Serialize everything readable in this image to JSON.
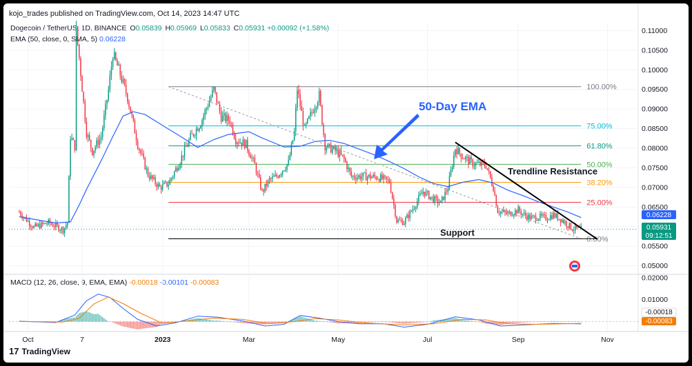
{
  "header": {
    "text": "kojo_trades published on TradingView.com, Oct 14, 2023 14:47 UTC"
  },
  "legend": {
    "symbol": "Dogecoin / TetherUS, 1D, BINANCE",
    "o_label": "O",
    "o": "0.05839",
    "h_label": "H",
    "h": "0.05969",
    "l_label": "L",
    "l": "0.05833",
    "c_label": "C",
    "c": "0.05931",
    "change": "+0.00092 (+1.58%)",
    "ema_label": "EMA (50, close, 0, SMA, 5)",
    "ema_value": "0.06228",
    "macd_label": "MACD (12, 26, close, 9, EMA, EMA)",
    "macd_hist": "-0.00018",
    "macd_line": "-0.00101",
    "macd_signal": "-0.00083"
  },
  "annotations": {
    "ema": "50-Day EMA",
    "trendline": "Trendline Resistance",
    "support": "Support"
  },
  "price_tags": {
    "ema": "0.06228",
    "close": "0.05931",
    "countdown": "09:12:51",
    "macd_hist": "-0.00018",
    "macd_signal": "-0.00083"
  },
  "footer": {
    "brand": "TradingView"
  },
  "colors": {
    "up": "#089981",
    "down": "#f23645",
    "ema": "#2962ff",
    "macd": "#2962ff",
    "signal": "#f57c00",
    "fib_100": "#787b86",
    "fib_75": "#00bcd4",
    "fib_618": "#089981",
    "fib_50": "#4caf50",
    "fib_382": "#ff9800",
    "fib_25": "#f23645",
    "fib_0": "#787b86"
  },
  "chart_data": [
    {
      "type": "candlestick",
      "title": "Dogecoin / TetherUS, 1D, BINANCE",
      "x_tick_labels": [
        "Oct",
        "7",
        "2023",
        "Mar",
        "May",
        "Jul",
        "Sep",
        "Nov"
      ],
      "y_tick_labels": [
        "0.11000",
        "0.10500",
        "0.10000",
        "0.09500",
        "0.09000",
        "0.08500",
        "0.08000",
        "0.07500",
        "0.07000",
        "0.06500",
        "0.06000",
        "0.05500",
        "0.05000"
      ],
      "ylim": [
        0.048,
        0.112
      ],
      "grid": true,
      "fib_levels": [
        {
          "label": "100.00%",
          "price": 0.0957
        },
        {
          "label": "75.00%",
          "price": 0.0857
        },
        {
          "label": "61.80%",
          "price": 0.0806
        },
        {
          "label": "50.00%",
          "price": 0.0759
        },
        {
          "label": "38.20%",
          "price": 0.0713
        },
        {
          "label": "25.00%",
          "price": 0.0662
        },
        {
          "label": "0.00%",
          "price": 0.0569
        }
      ],
      "price_path": [
        [
          "2022-09-25",
          0.0637
        ],
        [
          "2022-10-05",
          0.0598
        ],
        [
          "2022-10-15",
          0.061
        ],
        [
          "2022-10-25",
          0.0592
        ],
        [
          "2022-10-28",
          0.061
        ],
        [
          "2022-10-30",
          0.083
        ],
        [
          "2022-11-02",
          0.0805
        ],
        [
          "2022-11-03",
          0.11
        ],
        [
          "2022-11-05",
          0.103
        ],
        [
          "2022-11-10",
          0.084
        ],
        [
          "2022-11-14",
          0.0792
        ],
        [
          "2022-11-20",
          0.083
        ],
        [
          "2022-11-25",
          0.0948
        ],
        [
          "2022-11-28",
          0.104
        ],
        [
          "2022-12-02",
          0.1
        ],
        [
          "2022-12-08",
          0.093
        ],
        [
          "2022-12-15",
          0.081
        ],
        [
          "2022-12-22",
          0.0733
        ],
        [
          "2022-12-30",
          0.07
        ],
        [
          "2023-01-05",
          0.071
        ],
        [
          "2023-01-12",
          0.0761
        ],
        [
          "2023-01-20",
          0.0827
        ],
        [
          "2023-01-27",
          0.0865
        ],
        [
          "2023-02-05",
          0.095
        ],
        [
          "2023-02-10",
          0.088
        ],
        [
          "2023-02-16",
          0.0871
        ],
        [
          "2023-02-20",
          0.0822
        ],
        [
          "2023-02-27",
          0.081
        ],
        [
          "2023-03-05",
          0.0757
        ],
        [
          "2023-03-10",
          0.0688
        ],
        [
          "2023-03-15",
          0.0719
        ],
        [
          "2023-03-20",
          0.0728
        ],
        [
          "2023-03-28",
          0.0763
        ],
        [
          "2023-04-01",
          0.084
        ],
        [
          "2023-04-03",
          0.0952
        ],
        [
          "2023-04-08",
          0.0848
        ],
        [
          "2023-04-18",
          0.0935
        ],
        [
          "2023-04-22",
          0.0806
        ],
        [
          "2023-04-30",
          0.0791
        ],
        [
          "2023-05-05",
          0.0772
        ],
        [
          "2023-05-10",
          0.0728
        ],
        [
          "2023-05-20",
          0.0728
        ],
        [
          "2023-05-28",
          0.0726
        ],
        [
          "2023-06-05",
          0.0715
        ],
        [
          "2023-06-10",
          0.0615
        ],
        [
          "2023-06-15",
          0.0612
        ],
        [
          "2023-06-20",
          0.064
        ],
        [
          "2023-06-28",
          0.069
        ],
        [
          "2023-07-05",
          0.067
        ],
        [
          "2023-07-10",
          0.066
        ],
        [
          "2023-07-15",
          0.07
        ],
        [
          "2023-07-20",
          0.08
        ],
        [
          "2023-07-25",
          0.0779
        ],
        [
          "2023-08-01",
          0.0761
        ],
        [
          "2023-08-10",
          0.0757
        ],
        [
          "2023-08-15",
          0.07
        ],
        [
          "2023-08-18",
          0.064
        ],
        [
          "2023-08-25",
          0.0632
        ],
        [
          "2023-09-01",
          0.0642
        ],
        [
          "2023-09-05",
          0.063
        ],
        [
          "2023-09-10",
          0.0622
        ],
        [
          "2023-09-15",
          0.0625
        ],
        [
          "2023-09-20",
          0.0622
        ],
        [
          "2023-09-25",
          0.063
        ],
        [
          "2023-10-01",
          0.0617
        ],
        [
          "2023-10-08",
          0.0595
        ],
        [
          "2023-10-14",
          0.0593
        ]
      ],
      "ema50": [
        [
          "2022-09-25",
          0.0625
        ],
        [
          "2022-10-20",
          0.0609
        ],
        [
          "2022-10-30",
          0.0612
        ],
        [
          "2022-11-05",
          0.0655
        ],
        [
          "2022-11-10",
          0.0695
        ],
        [
          "2022-11-20",
          0.0768
        ],
        [
          "2022-11-28",
          0.083
        ],
        [
          "2022-12-05",
          0.0882
        ],
        [
          "2022-12-12",
          0.0893
        ],
        [
          "2022-12-20",
          0.0886
        ],
        [
          "2023-01-01",
          0.0858
        ],
        [
          "2023-01-15",
          0.0826
        ],
        [
          "2023-01-25",
          0.0802
        ],
        [
          "2023-02-05",
          0.0822
        ],
        [
          "2023-02-15",
          0.0835
        ],
        [
          "2023-03-01",
          0.0842
        ],
        [
          "2023-03-10",
          0.0826
        ],
        [
          "2023-03-25",
          0.0803
        ],
        [
          "2023-04-05",
          0.0805
        ],
        [
          "2023-04-15",
          0.0817
        ],
        [
          "2023-04-25",
          0.082
        ],
        [
          "2023-05-05",
          0.0812
        ],
        [
          "2023-05-15",
          0.0798
        ],
        [
          "2023-05-25",
          0.0784
        ],
        [
          "2023-06-05",
          0.0766
        ],
        [
          "2023-06-15",
          0.0748
        ],
        [
          "2023-06-25",
          0.0727
        ],
        [
          "2023-07-05",
          0.071
        ],
        [
          "2023-07-15",
          0.0702
        ],
        [
          "2023-07-25",
          0.0713
        ],
        [
          "2023-08-05",
          0.072
        ],
        [
          "2023-08-15",
          0.0711
        ],
        [
          "2023-08-25",
          0.0693
        ],
        [
          "2023-09-05",
          0.0678
        ],
        [
          "2023-09-15",
          0.0663
        ],
        [
          "2023-09-25",
          0.065
        ],
        [
          "2023-10-05",
          0.0637
        ],
        [
          "2023-10-14",
          0.0623
        ]
      ],
      "trendline": [
        [
          "2023-07-20",
          0.0815
        ],
        [
          "2023-10-25",
          0.0568
        ]
      ],
      "support_level": 0.0569,
      "ema_value": 0.06228,
      "last_close": 0.05931
    },
    {
      "type": "line",
      "title": "MACD (12, 26, close, 9, EMA, EMA)",
      "y_tick_labels": [
        "0.02000",
        "0.01000"
      ],
      "ylim": [
        -0.0045,
        0.0215
      ],
      "series": [
        {
          "name": "MACD",
          "points": [
            [
              "2022-09-25",
              0.0002
            ],
            [
              "2022-10-20",
              -0.0004
            ],
            [
              "2022-11-02",
              0.003
            ],
            [
              "2022-11-10",
              0.0095
            ],
            [
              "2022-11-18",
              0.0125
            ],
            [
              "2022-11-26",
              0.011
            ],
            [
              "2022-12-05",
              0.006
            ],
            [
              "2022-12-15",
              0.001
            ],
            [
              "2022-12-28",
              -0.002
            ],
            [
              "2023-01-10",
              -0.0005
            ],
            [
              "2023-01-25",
              0.0025
            ],
            [
              "2023-02-08",
              0.002
            ],
            [
              "2023-02-25",
              0.0003
            ],
            [
              "2023-03-12",
              -0.002
            ],
            [
              "2023-03-25",
              -0.0012
            ],
            [
              "2023-04-05",
              0.0028
            ],
            [
              "2023-04-18",
              0.0016
            ],
            [
              "2023-05-01",
              0.0
            ],
            [
              "2023-05-15",
              -0.001
            ],
            [
              "2023-06-01",
              -0.001
            ],
            [
              "2023-06-15",
              -0.0025
            ],
            [
              "2023-07-01",
              -0.0012
            ],
            [
              "2023-07-20",
              0.0022
            ],
            [
              "2023-08-05",
              0.0008
            ],
            [
              "2023-08-20",
              -0.002
            ],
            [
              "2023-09-05",
              -0.0015
            ],
            [
              "2023-09-25",
              -0.0008
            ],
            [
              "2023-10-14",
              -0.00101
            ]
          ]
        },
        {
          "name": "Signal",
          "points": [
            [
              "2022-09-25",
              0.0001
            ],
            [
              "2022-10-25",
              -0.0002
            ],
            [
              "2022-11-05",
              0.0015
            ],
            [
              "2022-11-15",
              0.008
            ],
            [
              "2022-11-25",
              0.0112
            ],
            [
              "2022-12-05",
              0.0082
            ],
            [
              "2022-12-18",
              0.0035
            ],
            [
              "2023-01-01",
              -0.0008
            ],
            [
              "2023-01-18",
              0.0004
            ],
            [
              "2023-02-05",
              0.0016
            ],
            [
              "2023-02-25",
              0.001
            ],
            [
              "2023-03-15",
              -0.001
            ],
            [
              "2023-04-01",
              0.0
            ],
            [
              "2023-04-15",
              0.0014
            ],
            [
              "2023-05-01",
              0.0008
            ],
            [
              "2023-05-20",
              -0.0006
            ],
            [
              "2023-06-15",
              -0.0015
            ],
            [
              "2023-07-05",
              -0.001
            ],
            [
              "2023-07-25",
              0.001
            ],
            [
              "2023-08-10",
              0.0008
            ],
            [
              "2023-08-25",
              -0.001
            ],
            [
              "2023-09-15",
              -0.0012
            ],
            [
              "2023-10-14",
              -0.00083
            ]
          ]
        }
      ],
      "last_hist": -0.00018
    }
  ]
}
